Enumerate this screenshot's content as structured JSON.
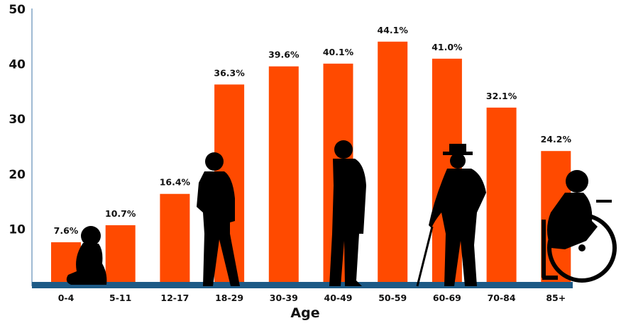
{
  "chart_data": {
    "type": "bar",
    "title": "",
    "xlabel": "Age",
    "ylabel": "",
    "ylim": [
      0,
      50
    ],
    "yticks": [
      10,
      20,
      30,
      40,
      50
    ],
    "grid": false,
    "categories": [
      "0-4",
      "5-11",
      "12-17",
      "18-29",
      "30-39",
      "40-49",
      "50-59",
      "60-69",
      "70-84",
      "85+"
    ],
    "values": [
      7.6,
      10.7,
      16.4,
      36.3,
      39.6,
      40.1,
      44.1,
      41.0,
      32.1,
      24.2
    ],
    "value_labels": [
      "7.6%",
      "10.7%",
      "16.4%",
      "36.3%",
      "39.6%",
      "40.1%",
      "44.1%",
      "41.0%",
      "32.1%",
      "24.2%"
    ],
    "colors": {
      "bar": "#ff4a00",
      "baseline": "#1d5a86",
      "axis": "#9fbad3",
      "text": "#111111",
      "silhouette": "#000000"
    },
    "illustrations": [
      "seated-child-silhouette",
      "standing-teen-silhouette",
      "standing-man-silhouette",
      "elderly-man-with-cane-silhouette",
      "person-in-wheelchair-silhouette"
    ]
  }
}
